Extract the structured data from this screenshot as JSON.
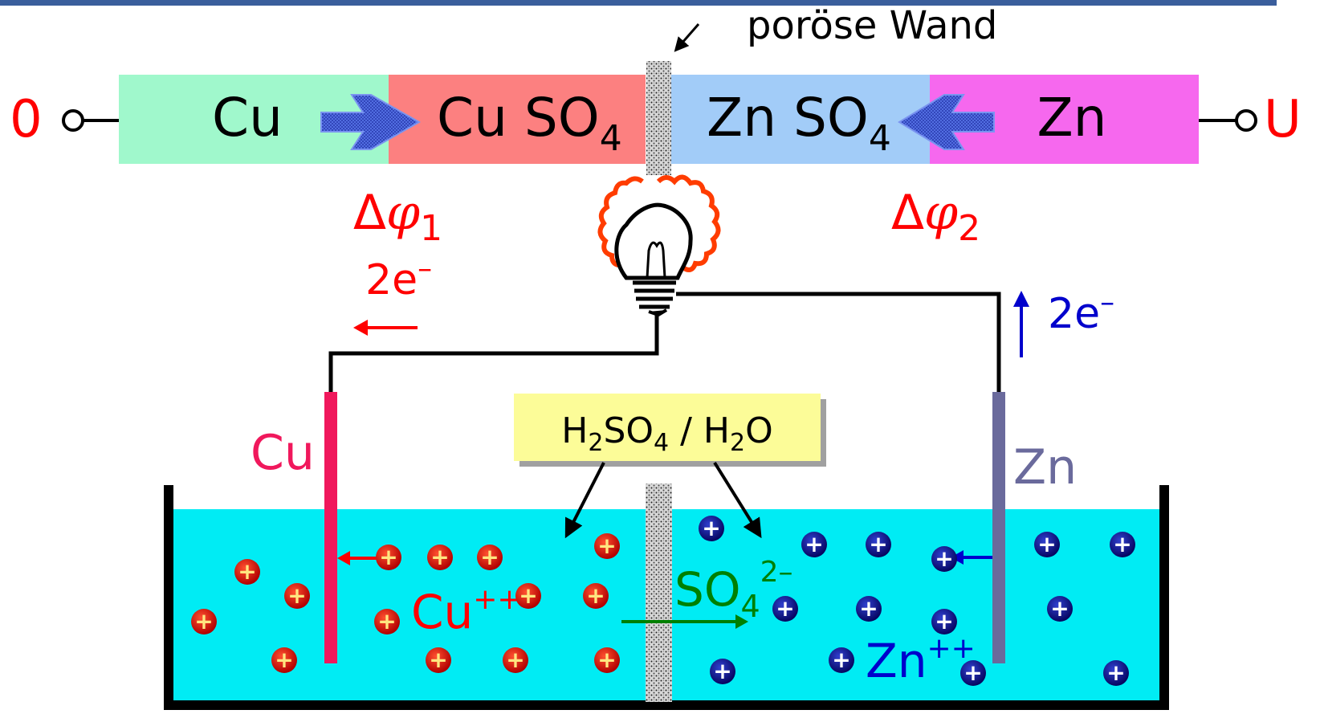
{
  "top_bar": {
    "left_terminal": "0",
    "right_terminal": "U",
    "porous_wall_label": "poröse Wand",
    "segments": [
      {
        "label": "Cu",
        "color": "#a0f8cc"
      },
      {
        "label": "Cu SO",
        "sub": "4",
        "color": "#fc8080"
      },
      {
        "label": "Zn SO",
        "sub": "4",
        "color": "#a2ccf8"
      },
      {
        "label": "Zn",
        "color": "#f668ee"
      }
    ]
  },
  "potentials": {
    "left": {
      "delta": "Δ",
      "phi": "φ",
      "sub": "1"
    },
    "right": {
      "delta": "Δ",
      "phi": "φ",
      "sub": "2"
    }
  },
  "electrons": {
    "left": {
      "text": "2e",
      "sup": "–"
    },
    "right": {
      "text": "2e",
      "sup": "–"
    }
  },
  "electrodes": {
    "left": "Cu",
    "right": "Zn"
  },
  "electrolyte_box": {
    "h1": "H",
    "s1": "2",
    "m1": "SO",
    "s2": "4",
    "m2": " / H",
    "s3": "2",
    "m3": "O"
  },
  "ions": {
    "cu": {
      "text": "Cu",
      "sup": "++"
    },
    "so4": {
      "text": "SO",
      "sub": "4",
      "sup": "2–"
    },
    "zn": {
      "text": "Zn",
      "sup": "++"
    },
    "plus_sign": "+"
  },
  "colors": {
    "header_rule": "#3a5e9c",
    "red": "#ff0000",
    "blue": "#0000cc",
    "green": "#008000",
    "copper_electrode": "#f0185c",
    "zinc_electrode": "#6a6a9c",
    "electrolyte": "#00ecf4",
    "label_box": "#fcfc98",
    "cu_ion": "#cc0000",
    "zn_ion": "#0a0a90",
    "bulb_glow": "#ff3c00"
  }
}
